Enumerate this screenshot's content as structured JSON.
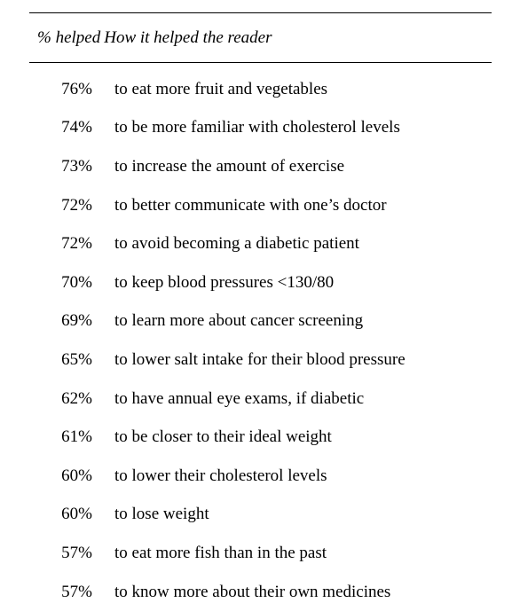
{
  "table": {
    "header": {
      "percent_col": "% helped",
      "description_col": "How it helped the reader"
    },
    "rows": [
      {
        "percent": "76%",
        "description": "to eat more fruit and vegetables"
      },
      {
        "percent": "74%",
        "description": "to be more familiar with cholesterol levels"
      },
      {
        "percent": "73%",
        "description": "to increase the amount of exercise"
      },
      {
        "percent": "72%",
        "description": "to better communicate with one’s doctor"
      },
      {
        "percent": "72%",
        "description": "to avoid becoming a diabetic patient"
      },
      {
        "percent": "70%",
        "description": "to keep blood pressures <130/80"
      },
      {
        "percent": "69%",
        "description": "to learn more about cancer screening"
      },
      {
        "percent": "65%",
        "description": "to lower salt intake for their blood pressure"
      },
      {
        "percent": "62%",
        "description": "to have annual eye exams, if diabetic"
      },
      {
        "percent": "61%",
        "description": "to be closer to their ideal weight"
      },
      {
        "percent": "60%",
        "description": "to lower their cholesterol levels"
      },
      {
        "percent": "60%",
        "description": "to lose weight"
      },
      {
        "percent": "57%",
        "description": "to eat more fish than in the past"
      },
      {
        "percent": "57%",
        "description": "to know more about their own medicines"
      }
    ]
  }
}
